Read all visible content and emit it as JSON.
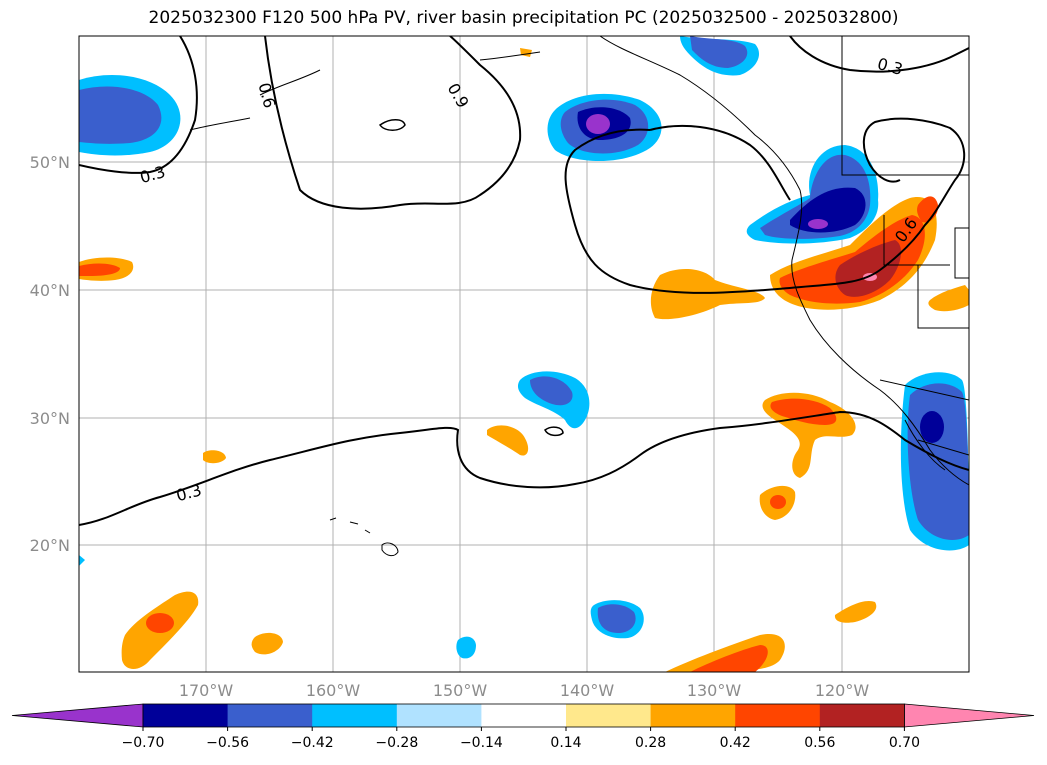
{
  "title": "2025032300 F120 500 hPa PV, river basin precipitation PC (2025032500 - 2025032800)",
  "lon_ticks": [
    "170°W",
    "160°W",
    "150°W",
    "140°W",
    "130°W",
    "120°W"
  ],
  "lat_ticks": [
    "50°N",
    "40°N",
    "30°N",
    "20°N"
  ],
  "contour_labels": [
    "0.3",
    "0.6",
    "0.9",
    "0.3",
    "0.3",
    "0.6"
  ],
  "colorbar": {
    "ticks": [
      "−0.70",
      "−0.56",
      "−0.42",
      "−0.28",
      "−0.14",
      "0.14",
      "0.28",
      "0.42",
      "0.56",
      "0.70"
    ],
    "colors": [
      "#9933cc",
      "#000099",
      "#3a5fcd",
      "#00bfff",
      "#b0e2ff",
      "#ffffff",
      "#ffe88c",
      "#ffa500",
      "#ff4500",
      "#b22222",
      "#ff85b0"
    ]
  }
}
